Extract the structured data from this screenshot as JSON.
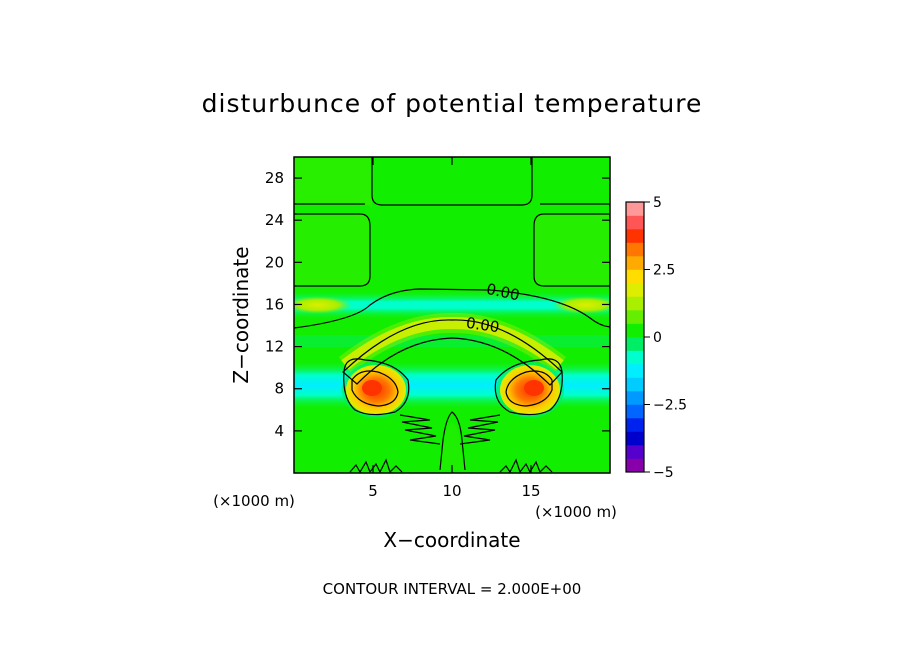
{
  "chart_data": {
    "type": "heatmap",
    "title": "disturbunce of potential temperature",
    "xlabel": "X−coordinate",
    "ylabel": "Z−coordinate",
    "x_unit": "(×1000 m)",
    "y_unit": "(×1000 m)",
    "xlim": [
      0,
      20
    ],
    "ylim": [
      0,
      30
    ],
    "x_ticks": [
      {
        "value": 5,
        "label": "5"
      },
      {
        "value": 10,
        "label": "10"
      },
      {
        "value": 15,
        "label": "15"
      }
    ],
    "y_ticks": [
      {
        "value": 4,
        "label": "4"
      },
      {
        "value": 8,
        "label": "8"
      },
      {
        "value": 12,
        "label": "12"
      },
      {
        "value": 16,
        "label": "16"
      },
      {
        "value": 20,
        "label": "20"
      },
      {
        "value": 24,
        "label": "24"
      },
      {
        "value": 28,
        "label": "28"
      }
    ],
    "colorbar": {
      "min": -5,
      "max": 5,
      "ticks": [
        {
          "value": 5,
          "label": "5"
        },
        {
          "value": 2.5,
          "label": "2.5"
        },
        {
          "value": 0,
          "label": "0"
        },
        {
          "value": -2.5,
          "label": "−2.5"
        },
        {
          "value": -5,
          "label": "−5"
        }
      ],
      "colors": [
        "#8800aa",
        "#5500cc",
        "#0000cc",
        "#0022ee",
        "#0066ff",
        "#0099ff",
        "#00ccff",
        "#00eeff",
        "#00ffcc",
        "#00ee66",
        "#11ee00",
        "#66ee00",
        "#aaee00",
        "#ddee00",
        "#ffdd00",
        "#ffaa00",
        "#ff7700",
        "#ff3300",
        "#ff5555",
        "#ff9999"
      ]
    },
    "contour_labels": [
      {
        "text": "0.00",
        "x": 12.7,
        "z": 16.8
      },
      {
        "text": "0.00",
        "x": 10.9,
        "z": 13.8
      }
    ],
    "contour_interval_text": "CONTOUR INTERVAL = 2.000E+00"
  }
}
